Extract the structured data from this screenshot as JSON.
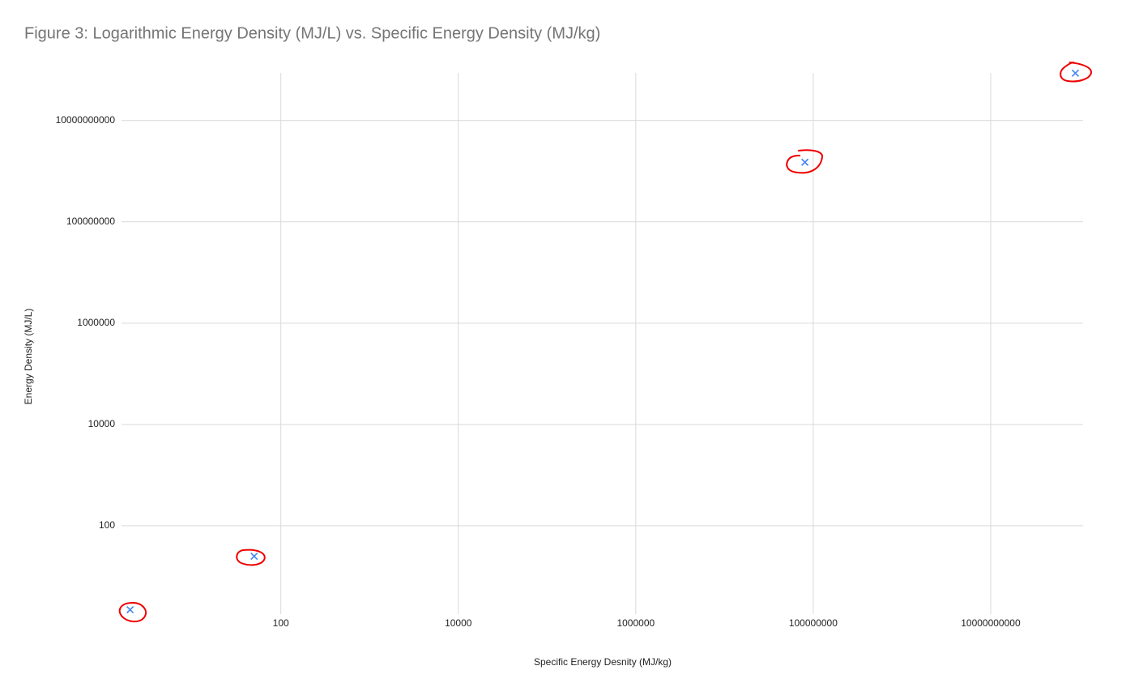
{
  "chart_data": {
    "type": "scatter",
    "title": "Figure 3: Logarithmic Energy Density (MJ/L) vs. Specific Energy Density (MJ/kg)",
    "x_label": "Specific Energy Desnity (MJ/kg)",
    "y_label": "Energy Density (MJ/L)",
    "x_log": true,
    "y_log": true,
    "grid": true,
    "series": [
      {
        "color": "#4285f4",
        "x": [
          2,
          50,
          80600000,
          90000000000
        ],
        "values": [
          2.2,
          25,
          1500000000,
          86000000000
        ]
      }
    ],
    "xlim": [
      1.6,
      110000000000
    ],
    "ylim": [
      1.8,
      87000000000
    ],
    "xticks": [
      100,
      10000,
      1000000,
      100000000,
      10000000000
    ],
    "yticks": [
      100,
      10000,
      1000000,
      100000000,
      10000000000
    ]
  }
}
